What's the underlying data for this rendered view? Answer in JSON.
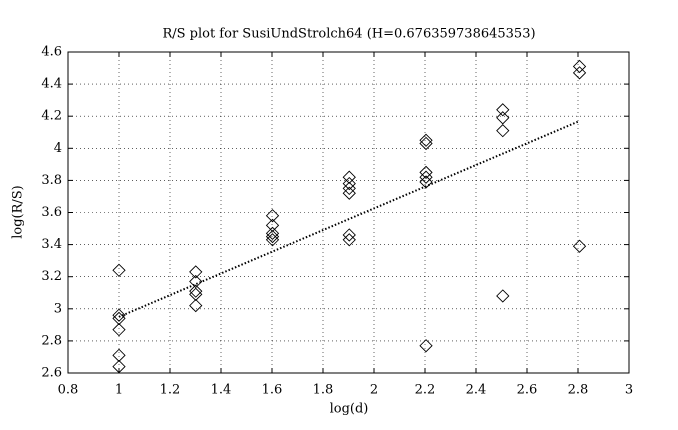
{
  "chart_data": {
    "type": "scatter",
    "title": "R/S plot for SusiUndStrolch64 (H=0.676359738645353)",
    "x_label": "log(d)",
    "y_label": "log(R/S)",
    "x": [
      1,
      1,
      1,
      1,
      1,
      1,
      1.301,
      1.301,
      1.301,
      1.301,
      1.301,
      1.602,
      1.602,
      1.602,
      1.602,
      1.602,
      1.903,
      1.903,
      1.903,
      1.903,
      1.903,
      1.903,
      2.204,
      2.204,
      2.204,
      2.204,
      2.204,
      2.204,
      2.505,
      2.505,
      2.505,
      2.505,
      2.806,
      2.806,
      2.806
    ],
    "values": [
      3.24,
      2.96,
      2.94,
      2.87,
      2.71,
      2.64,
      3.23,
      3.17,
      3.11,
      3.09,
      3.02,
      3.58,
      3.52,
      3.47,
      3.45,
      3.43,
      3.82,
      3.78,
      3.75,
      3.72,
      3.46,
      3.43,
      4.05,
      4.03,
      3.85,
      3.82,
      3.79,
      2.77,
      4.24,
      4.19,
      4.11,
      3.08,
      4.51,
      4.47,
      3.39
    ],
    "color": "#000000",
    "fit_line": {
      "x": [
        1,
        2.806
      ],
      "values": [
        2.95,
        4.17
      ]
    },
    "xlim": [
      0.8,
      3
    ],
    "xticks": [
      0.8,
      1,
      1.2,
      1.4,
      1.6,
      1.8,
      2,
      2.2,
      2.4,
      2.6,
      2.8,
      3
    ],
    "ylim": [
      2.6,
      4.6
    ],
    "yticks": [
      2.6,
      2.8,
      3,
      3.2,
      3.4,
      3.6,
      3.8,
      4,
      4.2,
      4.4,
      4.6
    ],
    "grid": true
  }
}
